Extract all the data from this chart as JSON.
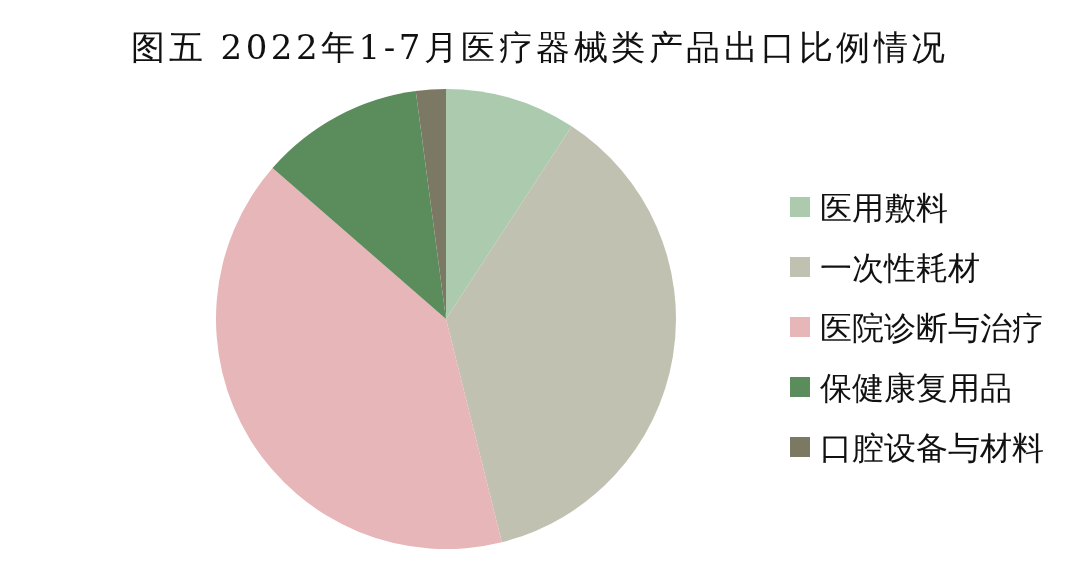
{
  "chart_data": {
    "type": "pie",
    "title": "图五 2022年1-7月医疗器械类产品出口比例情况",
    "categories": [
      "医用敷料",
      "一次性耗材",
      "医院诊断与治疗",
      "保健康复用品",
      "口腔设备与材料"
    ],
    "values": [
      9.2,
      36.9,
      40.3,
      11.5,
      2.1
    ],
    "colors": [
      "#abcaae",
      "#c1c1b1",
      "#e7b6b8",
      "#5b8c5c",
      "#7b7964"
    ],
    "legend": "right"
  }
}
